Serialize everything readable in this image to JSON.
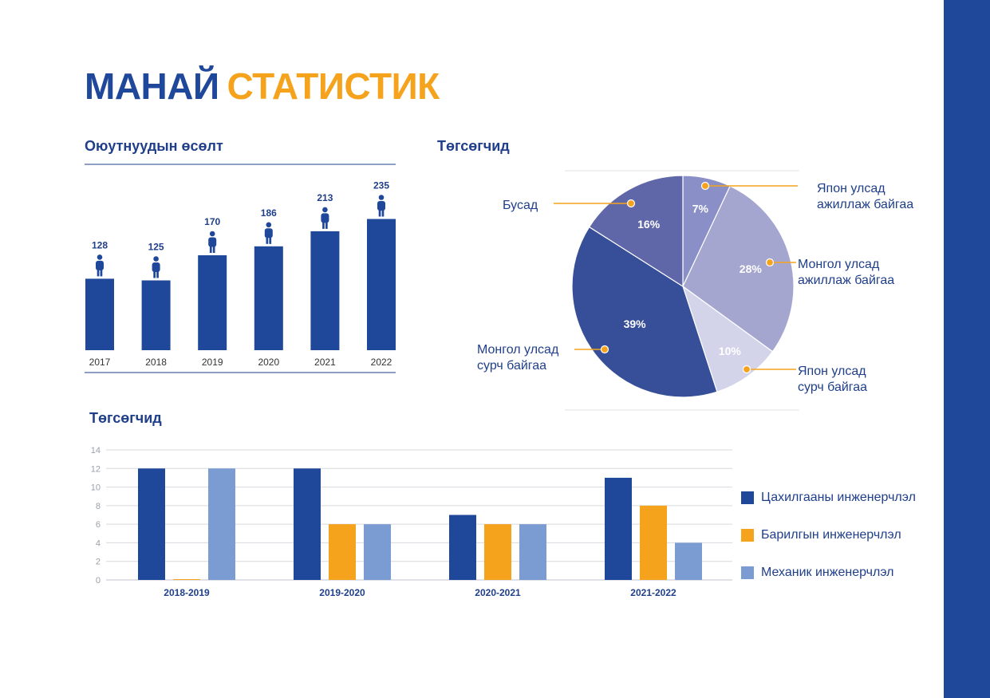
{
  "header": {
    "title_part1": "МАНАЙ",
    "title_part2": "СТАТИСТИК"
  },
  "sections": {
    "growth_title": "Оюутнуудын өсөлт",
    "graduates_title": "Төгсөгчид",
    "graduates_title_2": "Төгсөгчид"
  },
  "colors": {
    "brand_blue": "#1f479a",
    "accent_orange": "#f5a31d",
    "electrical": "#1f479a",
    "construction": "#f5a31d",
    "mechanical": "#7b9bd3",
    "pie": [
      "#8a8fc7",
      "#a4a6d0",
      "#d3d4ea",
      "#364f98",
      "#5f67a8"
    ]
  },
  "icons": {
    "student": "person-icon"
  },
  "chart_data": [
    {
      "type": "bar",
      "title": "Оюутнуудын өсөлт",
      "categories": [
        "2017",
        "2018",
        "2019",
        "2020",
        "2021",
        "2022"
      ],
      "values": [
        128,
        125,
        170,
        186,
        213,
        235
      ],
      "ylim": [
        0,
        250
      ],
      "grid": false
    },
    {
      "type": "pie",
      "title": "Төгсөгчид",
      "slices": [
        {
          "label": "Япон улсад ажиллаж байгаа",
          "value": 7,
          "value_label": "7%"
        },
        {
          "label": "Монгол улсад ажиллаж байгаа",
          "value": 28,
          "value_label": "28%"
        },
        {
          "label": "Япон улсад сурч байгаа",
          "value": 10,
          "value_label": "10%"
        },
        {
          "label": "Монгол улсад сурч байгаа",
          "value": 39,
          "value_label": "39%"
        },
        {
          "label": "Бусад",
          "value": 16,
          "value_label": "16%"
        }
      ]
    },
    {
      "type": "bar",
      "title": "Төгсөгчид",
      "categories": [
        "2018-2019",
        "2019-2020",
        "2020-2021",
        "2021-2022"
      ],
      "series": [
        {
          "name": "Цахилгааны инженерчлэл",
          "values": [
            12,
            12,
            7,
            11
          ]
        },
        {
          "name": "Барилгын инженерчлэл",
          "values": [
            0,
            6,
            6,
            8
          ]
        },
        {
          "name": "Механик инженерчлэл",
          "values": [
            12,
            6,
            6,
            4
          ]
        }
      ],
      "yticks": [
        "0",
        "2",
        "4",
        "6",
        "8",
        "10",
        "12",
        "14"
      ],
      "ylim": [
        0,
        14
      ],
      "grid": true,
      "legend": "right"
    }
  ]
}
